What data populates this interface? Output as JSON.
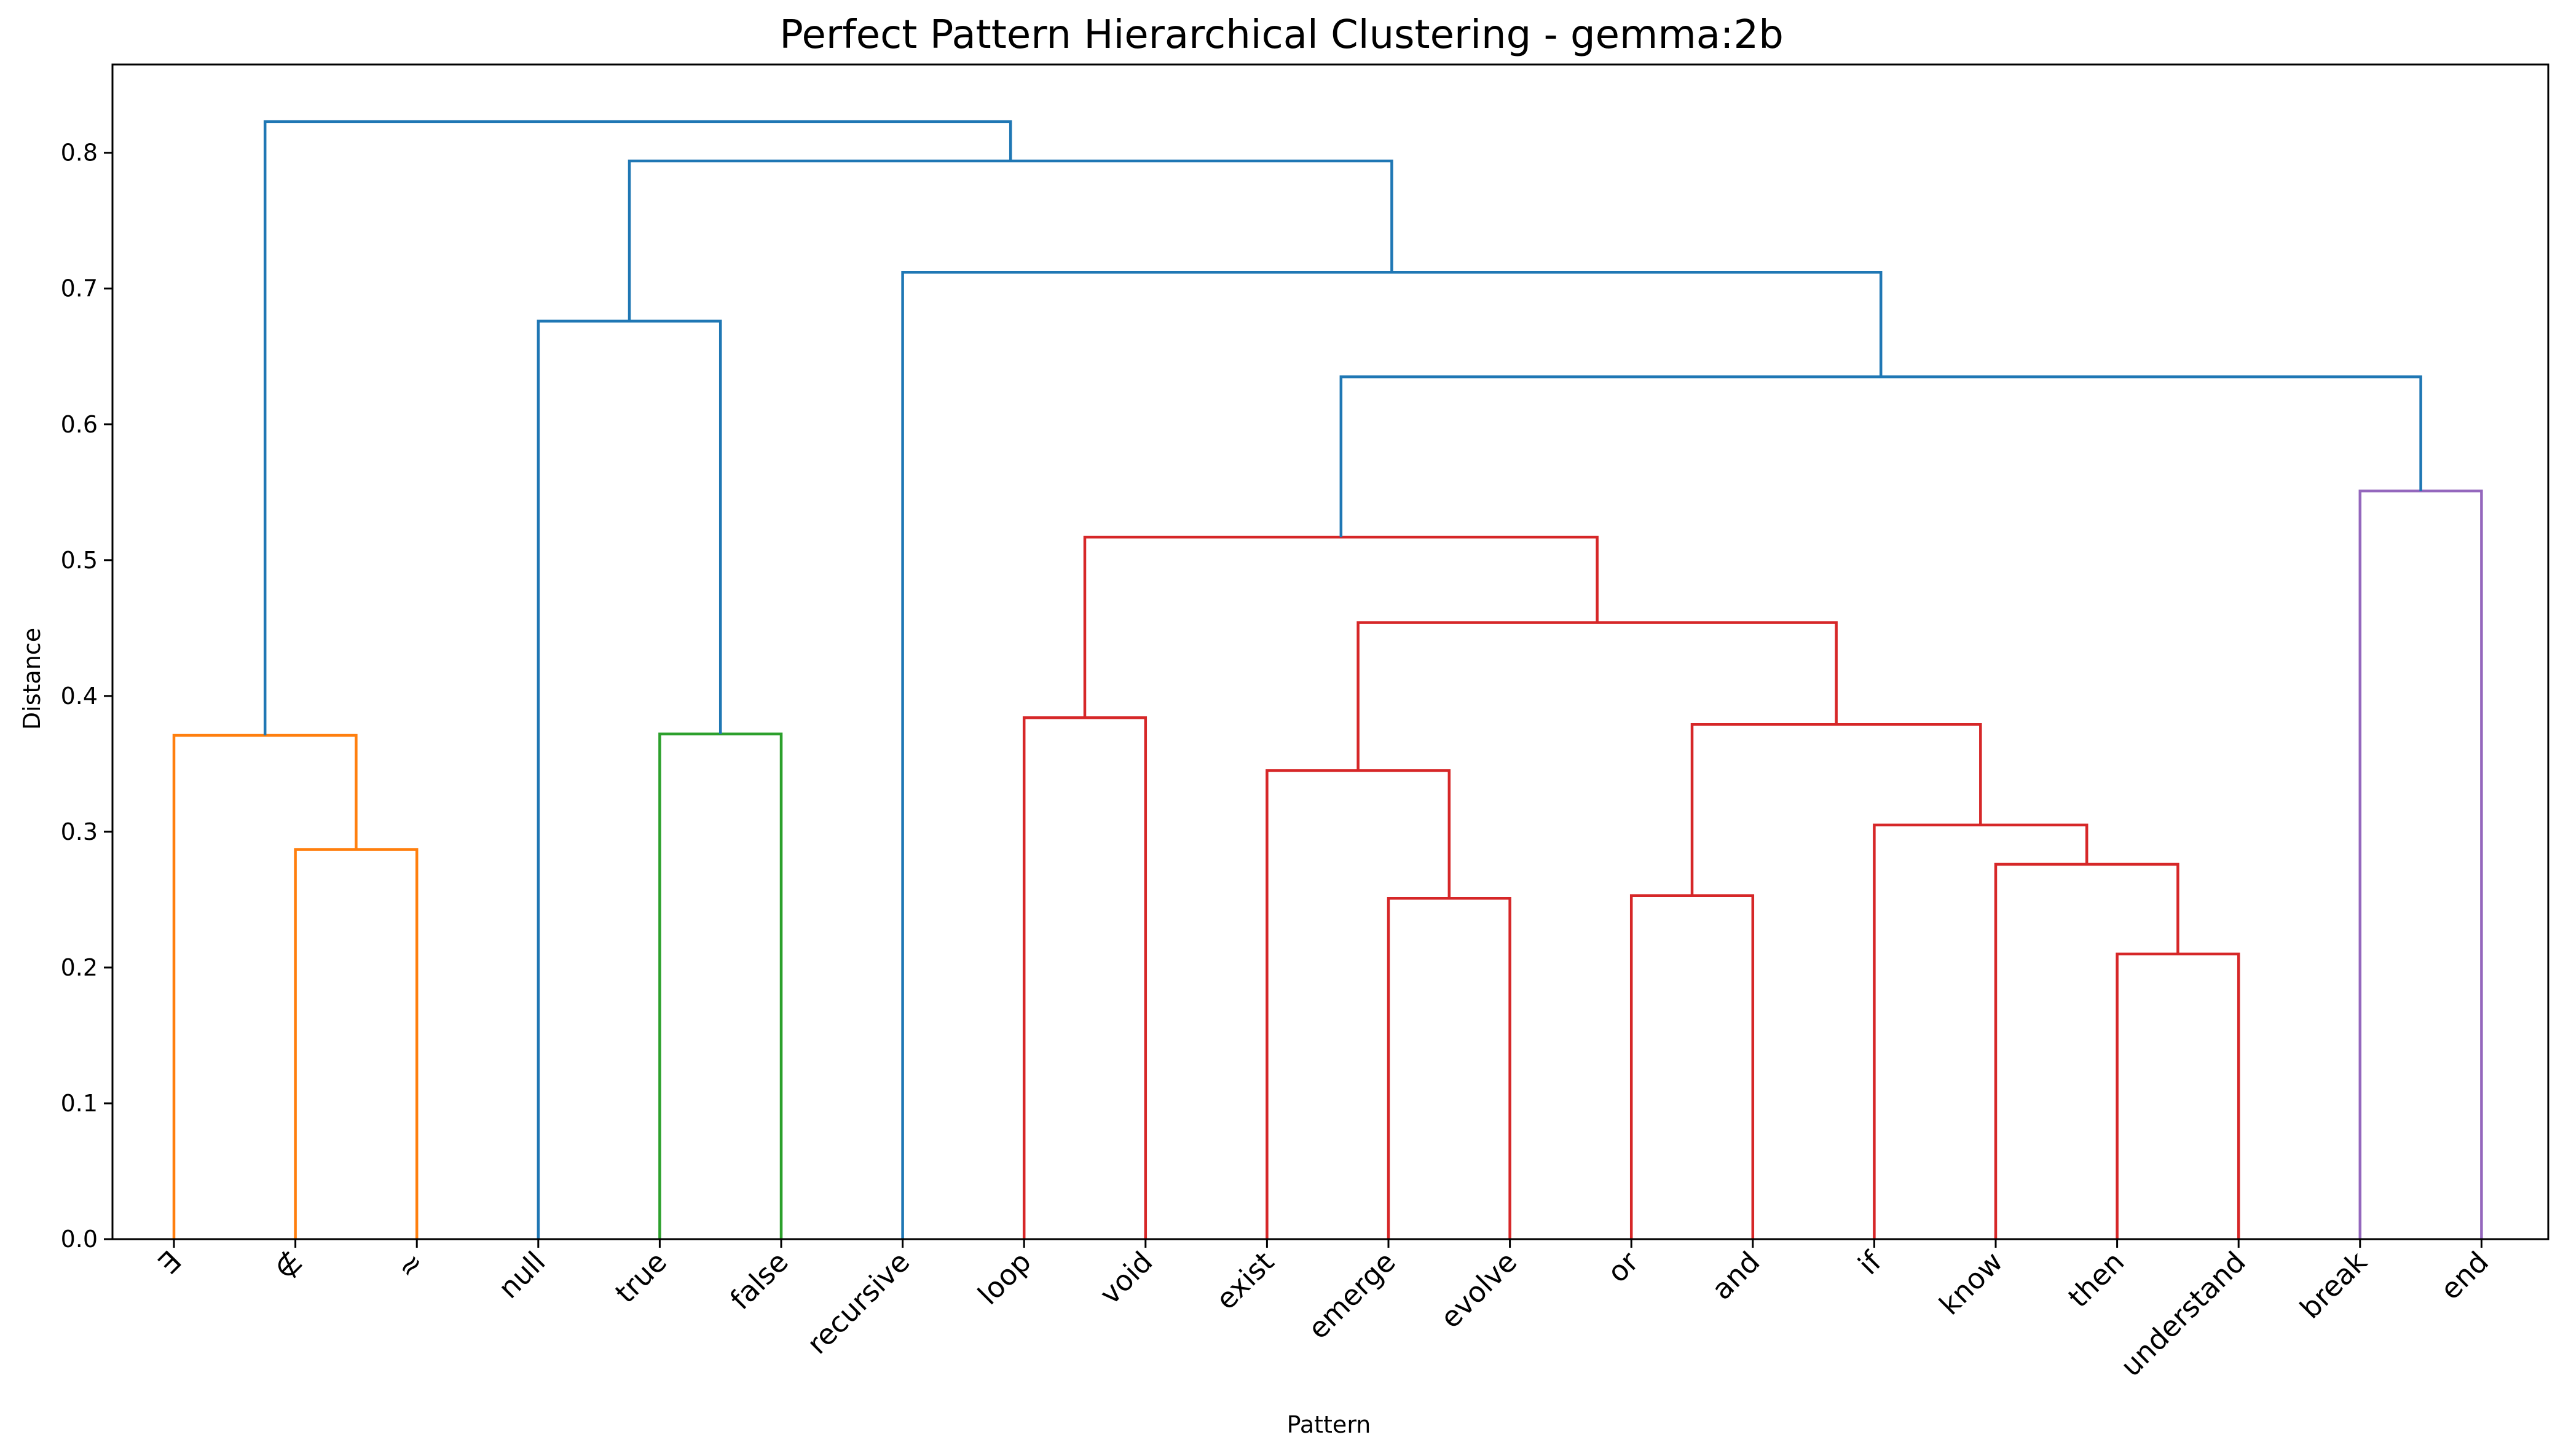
{
  "chart_data": {
    "type": "dendrogram",
    "title": "Perfect Pattern Hierarchical Clustering - gemma:2b",
    "xlabel": "Pattern",
    "ylabel": "Distance",
    "ylim": [
      0,
      0.865
    ],
    "yticks": [
      "0.0",
      "0.1",
      "0.2",
      "0.3",
      "0.4",
      "0.5",
      "0.6",
      "0.7",
      "0.8"
    ],
    "grid": false,
    "leaves": [
      "∃",
      "∉",
      "≈",
      "null",
      "true",
      "false",
      "recursive",
      "loop",
      "void",
      "exist",
      "emerge",
      "evolve",
      "or",
      "and",
      "if",
      "know",
      "then",
      "understand",
      "break",
      "end"
    ],
    "colors": {
      "orange": "#ff7f0e",
      "green": "#2ca02c",
      "red": "#d62728",
      "purple": "#9467bd",
      "blue": "#1f77b4"
    },
    "merges": [
      {
        "left": "∉",
        "right": "≈",
        "height": 0.287,
        "color": "orange"
      },
      {
        "left": "∃",
        "right": "(∉, ≈)",
        "height": 0.371,
        "color": "orange"
      },
      {
        "left": "true",
        "right": "false",
        "height": 0.372,
        "color": "green"
      },
      {
        "left": "null",
        "right": "(true, false)",
        "height": 0.676,
        "color": "blue"
      },
      {
        "left": "loop",
        "right": "void",
        "height": 0.384,
        "color": "red"
      },
      {
        "left": "emerge",
        "right": "evolve",
        "height": 0.251,
        "color": "red"
      },
      {
        "left": "exist",
        "right": "(emerge, evolve)",
        "height": 0.345,
        "color": "red"
      },
      {
        "left": "or",
        "right": "and",
        "height": 0.253,
        "color": "red"
      },
      {
        "left": "then",
        "right": "understand",
        "height": 0.21,
        "color": "red"
      },
      {
        "left": "know",
        "right": "(then, understand)",
        "height": 0.276,
        "color": "red"
      },
      {
        "left": "if",
        "right": "(know, then, understand)",
        "height": 0.305,
        "color": "red"
      },
      {
        "left": "(or, and)",
        "right": "(if ... understand)",
        "height": 0.379,
        "color": "red"
      },
      {
        "left": "(exist, emerge, evolve)",
        "right": "(or ... understand)",
        "height": 0.454,
        "color": "red"
      },
      {
        "left": "(loop, void)",
        "right": "(exist ... understand)",
        "height": 0.517,
        "color": "red"
      },
      {
        "left": "break",
        "right": "end",
        "height": 0.551,
        "color": "purple"
      },
      {
        "left": "(loop ... understand)",
        "right": "(break, end)",
        "height": 0.635,
        "color": "blue"
      },
      {
        "left": "recursive",
        "right": "(loop ... end)",
        "height": 0.712,
        "color": "blue"
      },
      {
        "left": "(null, true, false)",
        "right": "(recursive ... end)",
        "height": 0.794,
        "color": "blue"
      },
      {
        "left": "(∃, ∉, ≈)",
        "right": "(null ... end)",
        "height": 0.823,
        "color": "blue"
      }
    ]
  }
}
